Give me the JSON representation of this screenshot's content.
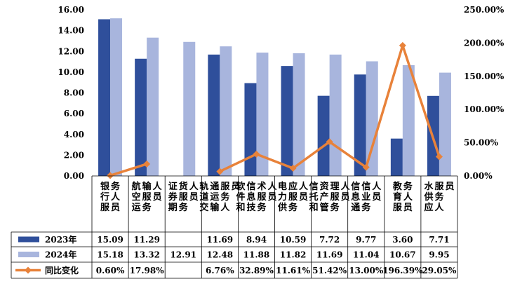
{
  "chart_data": {
    "type": "bar",
    "categories": [
      "银行服务人员",
      "航空运输服务人员",
      "证券期货服务人员",
      "轨道交通运输服务人员",
      "软件和信息技术服务人员",
      "电力供应服务人员",
      "信托和资产管理服务人员",
      "信息通信业务人员",
      "教育服务人员",
      "水供应服务人员"
    ],
    "series": [
      {
        "name": "2023年",
        "axis": "left",
        "color": "#2F4F9B",
        "values": [
          15.09,
          11.29,
          null,
          11.69,
          8.94,
          10.59,
          7.72,
          9.77,
          3.6,
          7.71
        ],
        "labels": [
          "15.09",
          "11.29",
          "",
          "11.69",
          "8.94",
          "10.59",
          "7.72",
          "9.77",
          "3.60",
          "7.71"
        ]
      },
      {
        "name": "2024年",
        "axis": "left",
        "color": "#A8B5DD",
        "values": [
          15.18,
          13.32,
          12.91,
          12.48,
          11.88,
          11.82,
          11.69,
          11.04,
          10.67,
          9.95
        ],
        "labels": [
          "15.18",
          "13.32",
          "12.91",
          "12.48",
          "11.88",
          "11.82",
          "11.69",
          "11.04",
          "10.67",
          "9.95"
        ]
      },
      {
        "name": "同比变化",
        "type": "line",
        "axis": "right",
        "color": "#E8823A",
        "values": [
          0.6,
          17.98,
          null,
          6.76,
          32.89,
          11.61,
          51.42,
          13.0,
          196.39,
          29.05
        ],
        "labels": [
          "0.60%",
          "17.98%",
          "",
          "6.76%",
          "32.89%",
          "11.61%",
          "51.42%",
          "13.00%",
          "196.39%",
          "29.05%"
        ]
      }
    ],
    "y_left": {
      "range": [
        0,
        16
      ],
      "ticks": [
        "0.00",
        "2.00",
        "4.00",
        "6.00",
        "8.00",
        "10.00",
        "12.00",
        "14.00",
        "16.00"
      ]
    },
    "y_right": {
      "range": [
        0,
        250
      ],
      "ticks": [
        "0.00%",
        "50.00%",
        "100.00%",
        "150.00%",
        "200.00%",
        "250.00%"
      ]
    },
    "grid": false,
    "legend": "data-table-left"
  }
}
